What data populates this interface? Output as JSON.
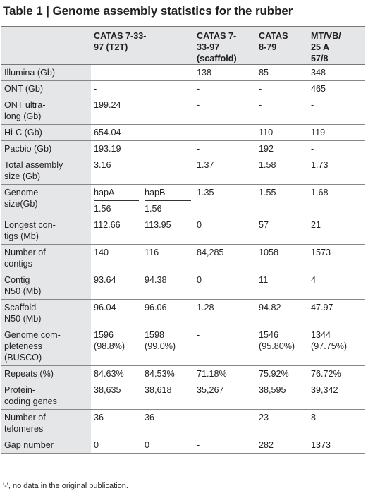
{
  "title": "Table 1 | Genome assembly statistics for the rubber",
  "columns": [
    "",
    "CATAS 7-33-97 (T2T)",
    "",
    "CATAS 7-33-97 (scaffold)",
    "CATAS 8-79",
    "MT/VB/ 25 A 57/8"
  ],
  "column_display": {
    "c1_line1": "CATAS 7-33-",
    "c1_line2": "97 (T2T)",
    "c3_line1": "CATAS 7-",
    "c3_line2": "33-97",
    "c3_line3": "(scaffold)",
    "c4_line1": "CATAS",
    "c4_line2": "8-79",
    "c5_line1": "MT/VB/",
    "c5_line2": "25 A",
    "c5_line3": "57/8"
  },
  "rows": [
    {
      "label": [
        "Illumina (Gb)"
      ],
      "cells": [
        "-",
        "",
        "138",
        "85",
        "348"
      ]
    },
    {
      "label": [
        "ONT (Gb)"
      ],
      "cells": [
        "-",
        "",
        "-",
        "-",
        "465"
      ]
    },
    {
      "label": [
        "ONT ultra-",
        "long (Gb)"
      ],
      "cells": [
        "199.24",
        "",
        "-",
        "-",
        "-"
      ]
    },
    {
      "label": [
        "Hi-C (Gb)"
      ],
      "cells": [
        "654.04",
        "",
        "-",
        "110",
        "119"
      ]
    },
    {
      "label": [
        "Pacbio (Gb)"
      ],
      "cells": [
        "193.19",
        "",
        "-",
        "192",
        "-"
      ]
    },
    {
      "label": [
        "Total assembly",
        "size (Gb)"
      ],
      "cells": [
        "3.16",
        "",
        "1.37",
        "1.58",
        "1.73"
      ]
    },
    {
      "label": [
        "Genome",
        "size(Gb)"
      ],
      "split": {
        "hapA": "hapA",
        "hapB": "hapB",
        "valA": "1.56",
        "valB": "1.56"
      },
      "cells": [
        "",
        "",
        "1.35",
        "1.55",
        "1.68"
      ]
    },
    {
      "label": [
        "Longest con-",
        "tigs (Mb)"
      ],
      "cells": [
        "112.66",
        "113.95",
        "0",
        "57",
        "21"
      ]
    },
    {
      "label": [
        "Number of",
        "contigs"
      ],
      "cells": [
        "140",
        "116",
        "84,285",
        "1058",
        "1573"
      ]
    },
    {
      "label": [
        "Contig",
        "N50 (Mb)"
      ],
      "cells": [
        "93.64",
        "94.38",
        "0",
        "11",
        "4"
      ]
    },
    {
      "label": [
        "Scaffold",
        "N50 (Mb)"
      ],
      "cells": [
        "96.04",
        "96.06",
        "1.28",
        "94.82",
        "47.97"
      ]
    },
    {
      "label": [
        "Genome com-",
        "pleteness",
        "(BUSCO)"
      ],
      "cells": [
        [
          "1596",
          "(98.8%)"
        ],
        [
          "1598",
          "(99.0%)"
        ],
        "-",
        [
          "1546",
          "(95.80%)"
        ],
        [
          "1344",
          "(97.75%)"
        ]
      ]
    },
    {
      "label": [
        "Repeats (%)"
      ],
      "cells": [
        "84.63%",
        "84.53%",
        "71.18%",
        "75.92%",
        "76.72%"
      ]
    },
    {
      "label": [
        "Protein-",
        "coding genes"
      ],
      "cells": [
        "38,635",
        "38,618",
        "35,267",
        "38,595",
        "39,342"
      ]
    },
    {
      "label": [
        "Number of",
        "telomeres"
      ],
      "cells": [
        "36",
        "36",
        "-",
        "23",
        "8"
      ]
    },
    {
      "label": [
        "Gap number"
      ],
      "cells": [
        "0",
        "0",
        "-",
        "282",
        "1373"
      ]
    }
  ],
  "footnote": "'-', no data in the original publication."
}
